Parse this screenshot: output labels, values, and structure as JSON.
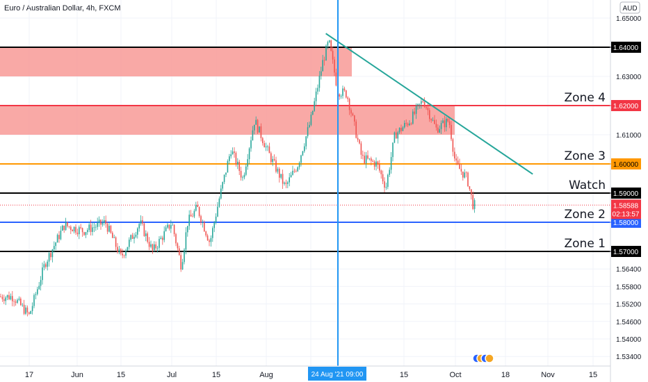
{
  "header": {
    "symbol_title": "Euro / Australian Dollar, 4h, FXCM",
    "currency_badge": "AUD"
  },
  "price_scale": {
    "ticks": [
      "1.65000",
      "1.63000",
      "1.61000",
      "1.56400",
      "1.55800",
      "1.55200",
      "1.54600",
      "1.54000",
      "1.53400"
    ],
    "scale_note": "right price axis; chart window approx 1.534 – 1.652"
  },
  "time_axis": {
    "labels": [
      "17",
      "Jun",
      "15",
      "Jul",
      "15",
      "Aug",
      "15",
      "Oct",
      "18",
      "Nov",
      "15"
    ],
    "crosshair_label": "24 Aug '21  09:00"
  },
  "level_lines": [
    {
      "price": 1.64,
      "label": "1.64000",
      "color": "#000000",
      "zone": ""
    },
    {
      "price": 1.62,
      "label": "1.62000",
      "color": "#f23645",
      "zone": "Zone 4"
    },
    {
      "price": 1.6,
      "label": "1.60000",
      "color": "#ff9800",
      "zone": "Zone 3"
    },
    {
      "price": 1.59,
      "label": "1.59000",
      "color": "#000000",
      "zone": "Watch"
    },
    {
      "price": 1.58,
      "label": "1.58000",
      "color": "#2962ff",
      "zone": "Zone 2"
    },
    {
      "price": 1.57,
      "label": "1.57000",
      "color": "#000000",
      "zone": "Zone 1"
    }
  ],
  "current_price": {
    "price": 1.58588,
    "label": "1.58588",
    "countdown": "02:13:57",
    "color": "#f23645"
  },
  "zones_shaded": [
    {
      "top": 1.64,
      "bottom": 1.63,
      "color": "#f8a09c"
    },
    {
      "top": 1.62,
      "bottom": 1.61,
      "color": "#f8a09c"
    }
  ],
  "trendline": {
    "color": "#26a69a",
    "from": {
      "date": "2021-08-20",
      "price": 1.6447
    },
    "to": {
      "date": "2021-10-27",
      "price": 1.5965
    }
  },
  "colors": {
    "up": "#26a69a",
    "down": "#ef5350",
    "crosshair": "#2196f3",
    "grid": "#f0f3fa"
  },
  "chart_data": {
    "type": "line",
    "title": "Euro / Australian Dollar, 4h, FXCM",
    "xlabel": "",
    "ylabel": "",
    "ylim": [
      1.534,
      1.652
    ],
    "grid": true,
    "x": [
      "2021-05-12",
      "2021-05-17",
      "2021-05-22",
      "2021-05-28",
      "2021-06-03",
      "2021-06-10",
      "2021-06-15",
      "2021-06-21",
      "2021-06-25",
      "2021-07-01",
      "2021-07-04",
      "2021-07-06",
      "2021-07-09",
      "2021-07-13",
      "2021-07-16",
      "2021-07-20",
      "2021-07-24",
      "2021-07-28",
      "2021-08-02",
      "2021-08-07",
      "2021-08-11",
      "2021-08-15",
      "2021-08-19",
      "2021-08-21",
      "2021-08-24",
      "2021-08-27",
      "2021-09-01",
      "2021-09-06",
      "2021-09-09",
      "2021-09-12",
      "2021-09-17",
      "2021-09-21",
      "2021-09-25",
      "2021-09-29",
      "2021-10-01",
      "2021-10-05",
      "2021-10-07"
    ],
    "y": [
      1.5545,
      1.548,
      1.566,
      1.579,
      1.577,
      1.58,
      1.568,
      1.58,
      1.57,
      1.58,
      1.565,
      1.58,
      1.585,
      1.573,
      1.588,
      1.605,
      1.595,
      1.615,
      1.603,
      1.592,
      1.6,
      1.615,
      1.635,
      1.642,
      1.625,
      1.624,
      1.602,
      1.6,
      1.592,
      1.61,
      1.615,
      1.622,
      1.612,
      1.615,
      1.6,
      1.595,
      1.5859
    ]
  }
}
